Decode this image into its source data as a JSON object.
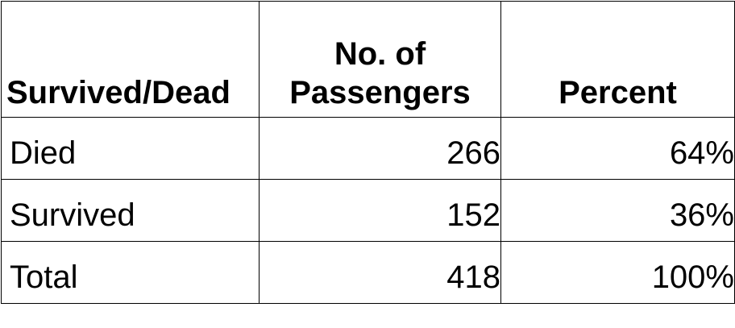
{
  "table": {
    "headers": {
      "col1": "Survived/Dead",
      "col2_line1": "No. of",
      "col2_line2": "Passengers",
      "col3": "Percent"
    },
    "rows": [
      {
        "label": "Died",
        "passengers": "266",
        "percent": "64%"
      },
      {
        "label": "Survived",
        "passengers": "152",
        "percent": "36%"
      },
      {
        "label": "Total",
        "passengers": "418",
        "percent": "100%"
      }
    ]
  }
}
